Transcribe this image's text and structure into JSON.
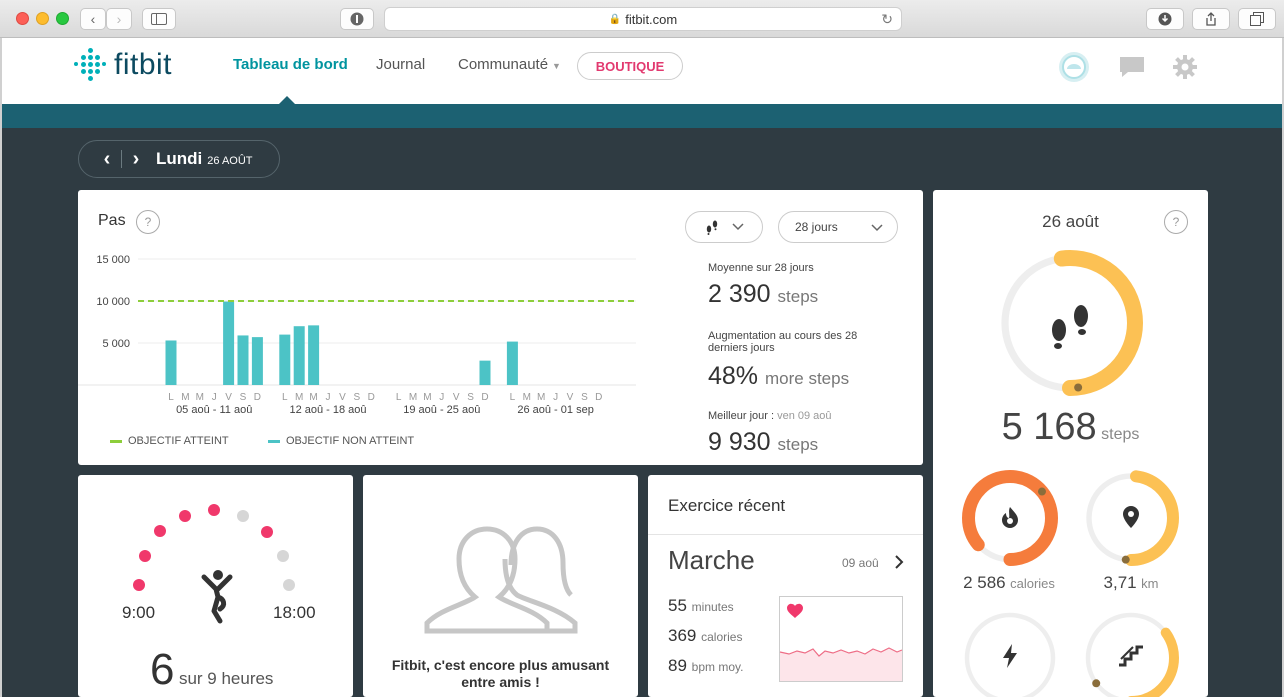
{
  "browser": {
    "url": "fitbit.com"
  },
  "nav": {
    "logo": "fitbit",
    "items": [
      "Tableau de bord",
      "Journal",
      "Communauté"
    ],
    "shop": "BOUTIQUE"
  },
  "date_selector": {
    "day": "Lundi",
    "date": "26 AOÛT"
  },
  "steps_card": {
    "title": "Pas",
    "help": "?",
    "range": "28 jours",
    "avg_label": "Moyenne sur 28 jours",
    "avg_value": "2 390",
    "avg_unit": "steps",
    "increase_label": "Augmentation au cours des 28 derniers jours",
    "increase_value": "48%",
    "increase_unit": "more steps",
    "best_label": "Meilleur jour :",
    "best_date": "ven 09 aoû",
    "best_value": "9 930",
    "best_unit": "steps",
    "legend_met": "OBJECTIF ATTEINT",
    "legend_not_met": "OBJECTIF NON ATTEINT"
  },
  "chart_data": {
    "type": "bar",
    "y_ticks": [
      "15 000",
      "10 000",
      "5 000"
    ],
    "ylim": [
      0,
      15000
    ],
    "goal": 10000,
    "day_letters": [
      "L",
      "M",
      "M",
      "J",
      "V",
      "S",
      "D"
    ],
    "weeks": [
      "05 aoû - 11 aoû",
      "12 aoû - 18 aoû",
      "19 aoû - 25 aoû",
      "26 aoû - 01 sep"
    ],
    "values": [
      5300,
      0,
      0,
      0,
      9930,
      5900,
      5700,
      6000,
      7000,
      7100,
      0,
      0,
      0,
      0,
      0,
      0,
      0,
      0,
      0,
      0,
      2900,
      5168,
      0,
      0,
      0,
      0,
      0,
      0
    ],
    "colors": {
      "bar": "#4cc3c6",
      "goal": "#8dce3b"
    }
  },
  "hourly_card": {
    "start": "9:00",
    "end": "18:00",
    "count": "6",
    "suffix": "sur 9 heures",
    "active_color": "#f0386b",
    "inactive_color": "#d6d6d6"
  },
  "friends_card": {
    "text": "Fitbit, c'est encore plus amusant entre amis !"
  },
  "exercise_card": {
    "title": "Exercice récent",
    "activity": "Marche",
    "date": "09 aoû",
    "minutes": "55",
    "minutes_unit": "minutes",
    "calories": "369",
    "calories_unit": "calories",
    "bpm": "89",
    "bpm_unit": "bpm moy."
  },
  "summary": {
    "date": "26 août",
    "steps_value": "5 168",
    "steps_unit": "steps",
    "steps_progress": 0.52,
    "calories_value": "2 586",
    "calories_unit": "calories",
    "calories_progress": 0.86,
    "distance_value": "3,71",
    "distance_unit": "km",
    "distance_progress": 0.48,
    "stairs_progress": 0.35,
    "colors": {
      "steps": "#fcc154",
      "calories": "#f57c3c",
      "distance": "#fcc154",
      "track": "#eeeeee"
    }
  }
}
